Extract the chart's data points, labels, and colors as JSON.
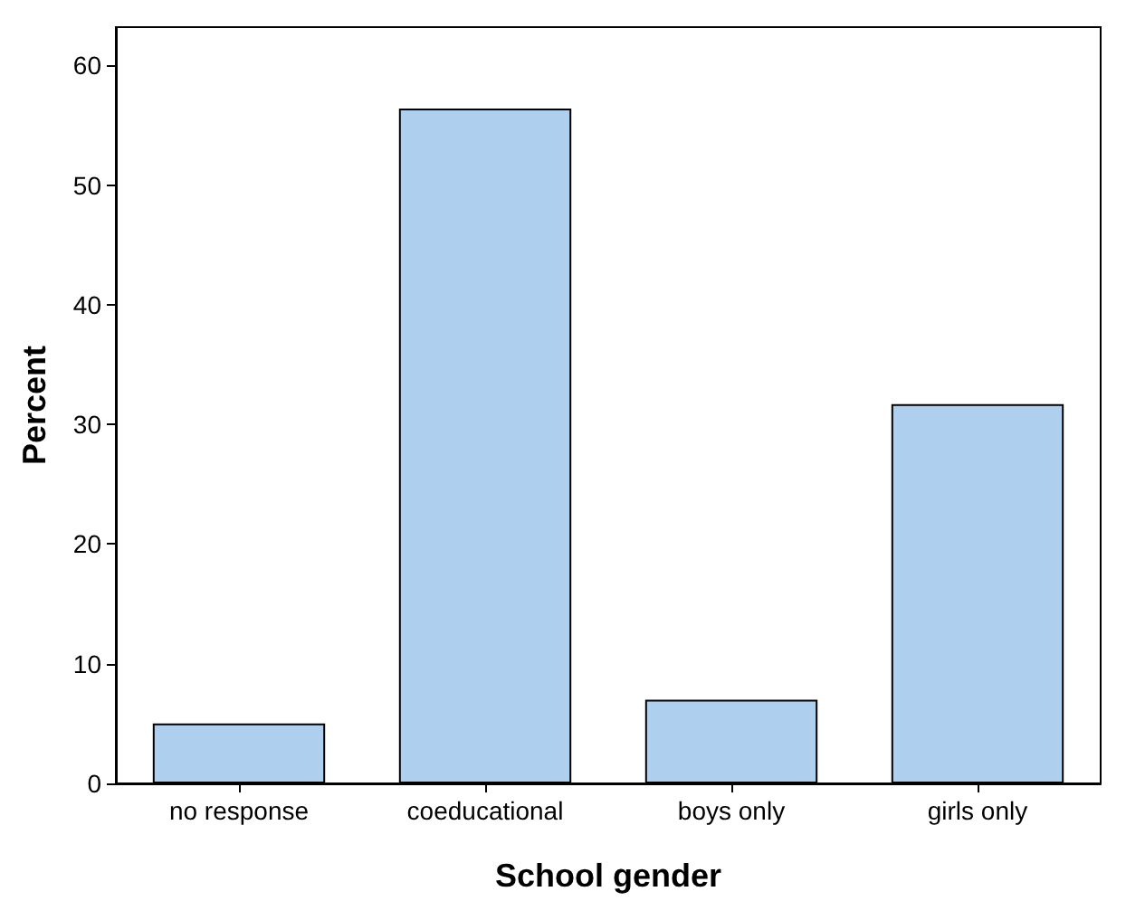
{
  "chart_data": {
    "type": "bar",
    "xlabel": "School gender",
    "ylabel": "Percent",
    "categories": [
      "no response",
      "coeducational",
      "boys only",
      "girls only"
    ],
    "values": [
      5,
      56.4,
      7,
      31.7
    ],
    "color": "#aed0ee",
    "ylim": [
      0,
      63.2
    ],
    "yticks": [
      0,
      10,
      20,
      30,
      40,
      50,
      60
    ],
    "grid": false
  }
}
